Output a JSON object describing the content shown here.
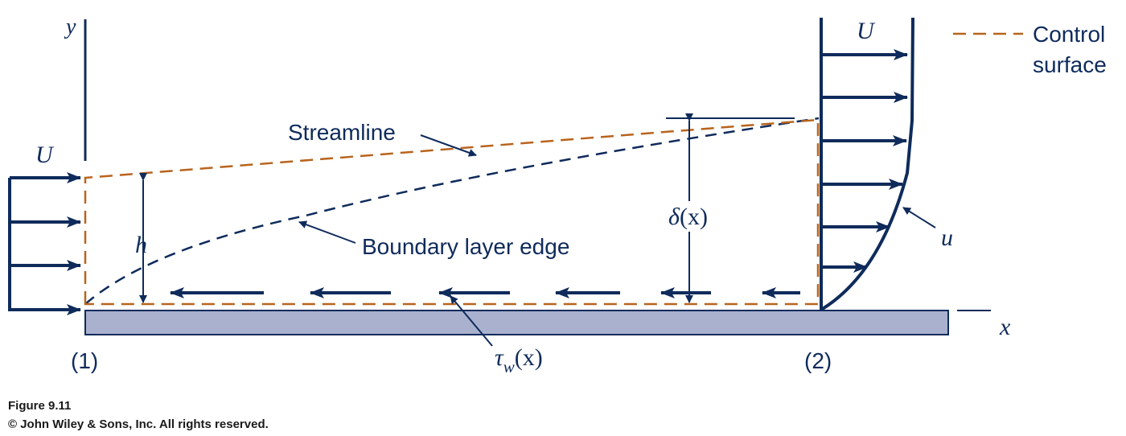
{
  "diagram": {
    "labels": {
      "y_axis": "y",
      "x_axis": "x",
      "velocity_inlet": "U",
      "velocity_outlet": "U",
      "height": "h",
      "streamline": "Streamline",
      "boundary_layer_edge": "Boundary layer edge",
      "delta_symbol": "δ",
      "delta_arg": "(x)",
      "tau_symbol": "τ",
      "tau_subscript": "w",
      "tau_arg": "(x)",
      "velocity_profile": "u",
      "section_1": "(1)",
      "section_2": "(2)"
    },
    "legend": {
      "line1": "Control",
      "line2": "surface"
    },
    "colors": {
      "ink": "#0f2b5b",
      "control_surface": "#b8641e",
      "plate_fill": "#a9b1cf"
    }
  },
  "caption": {
    "figure": "Figure 9.11",
    "copyright": "© John Wiley & Sons, Inc. All rights reserved."
  }
}
